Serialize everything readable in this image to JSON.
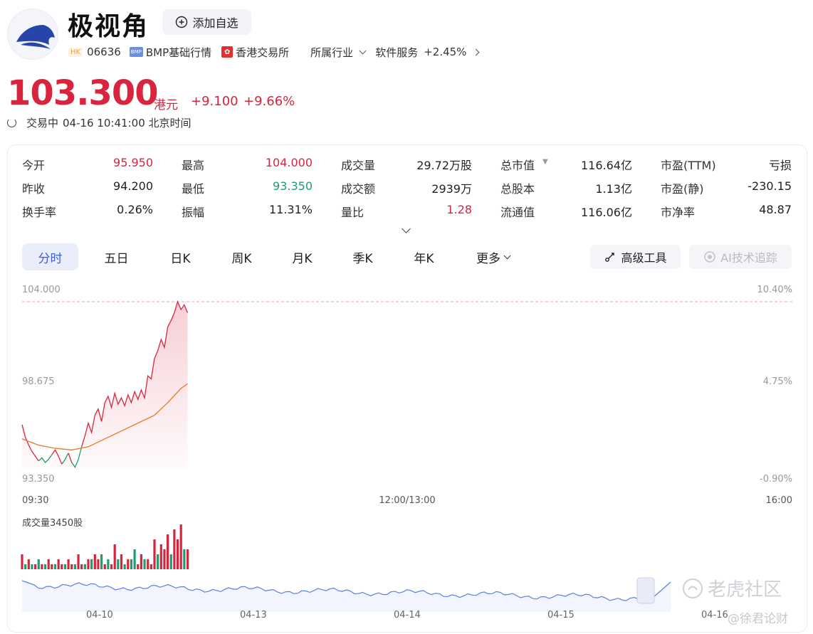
{
  "header": {
    "name": "极视角",
    "watch_label": "添加自选",
    "market_badge": "HK",
    "code": "06636",
    "bmp_badge": "BMP",
    "bmp_label": "BMP基础行情",
    "exchange": "香港交易所",
    "industry_label": "所属行业",
    "sector": "软件服务",
    "sector_change": "+2.45%"
  },
  "price": {
    "last": "103.300",
    "currency": "港元",
    "change": "+9.100",
    "change_pct": "+9.66%",
    "status": "交易中",
    "time": "04-16 10:41:00 北京时间"
  },
  "quote": [
    [
      {
        "label": "今开",
        "value": "95.950",
        "tone": "red"
      },
      {
        "label": "最高",
        "value": "104.000",
        "tone": "red"
      },
      {
        "label": "成交量",
        "value": "29.72万股",
        "tone": ""
      },
      {
        "label": "总市值",
        "value": "116.64亿",
        "tone": ""
      },
      {
        "label": "市盈(TTM)",
        "value": "亏损",
        "tone": ""
      }
    ],
    [
      {
        "label": "昨收",
        "value": "94.200",
        "tone": ""
      },
      {
        "label": "最低",
        "value": "93.350",
        "tone": "green"
      },
      {
        "label": "成交额",
        "value": "2939万",
        "tone": ""
      },
      {
        "label": "总股本",
        "value": "1.13亿",
        "tone": ""
      },
      {
        "label": "市盈(静)",
        "value": "-230.15",
        "tone": ""
      }
    ],
    [
      {
        "label": "换手率",
        "value": "0.26%",
        "tone": ""
      },
      {
        "label": "振幅",
        "value": "11.31%",
        "tone": ""
      },
      {
        "label": "量比",
        "value": "1.28",
        "tone": "red"
      },
      {
        "label": "流通值",
        "value": "116.06亿",
        "tone": ""
      },
      {
        "label": "市净率",
        "value": "48.87",
        "tone": ""
      }
    ]
  ],
  "tabs": [
    "分时",
    "五日",
    "日K",
    "周K",
    "月K",
    "季K",
    "年K",
    "更多"
  ],
  "tools": {
    "advanced": "高级工具",
    "ai": "AI技术追踪"
  },
  "chart_data": {
    "type": "line",
    "x_ticks": [
      "09:30",
      "12:00/13:00",
      "16:00"
    ],
    "y_ticks_left": [
      "104.000",
      "98.675",
      "93.350"
    ],
    "y_ticks_right": [
      "10.40%",
      "4.75%",
      "-0.90%"
    ],
    "volume_label": "成交量3450股",
    "overview_dates": [
      "04-10",
      "04-13",
      "04-14",
      "04-15",
      "04-16"
    ],
    "colors": {
      "price": "#d8253d",
      "avg": "#e8782a",
      "down": "#1f9c72",
      "overview": "#5b7fe0"
    },
    "price_points": [
      [
        0,
        96.2
      ],
      [
        1,
        95.4
      ],
      [
        2,
        94.9
      ],
      [
        3,
        94.5
      ],
      [
        4,
        94.2
      ],
      [
        5,
        93.9
      ],
      [
        6,
        94.1
      ],
      [
        7,
        93.8
      ],
      [
        8,
        94.0
      ],
      [
        9,
        94.3
      ],
      [
        10,
        94.6
      ],
      [
        11,
        94.2
      ],
      [
        12,
        93.7
      ],
      [
        13,
        94.0
      ],
      [
        14,
        94.4
      ],
      [
        15,
        93.8
      ],
      [
        16,
        93.5
      ],
      [
        17,
        94.0
      ],
      [
        18,
        94.8
      ],
      [
        19,
        95.5
      ],
      [
        20,
        96.3
      ],
      [
        21,
        95.7
      ],
      [
        22,
        96.8
      ],
      [
        23,
        97.2
      ],
      [
        24,
        96.4
      ],
      [
        25,
        97.6
      ],
      [
        26,
        98.0
      ],
      [
        27,
        97.3
      ],
      [
        28,
        98.2
      ],
      [
        29,
        97.5
      ],
      [
        30,
        97.9
      ],
      [
        31,
        97.4
      ],
      [
        32,
        98.1
      ],
      [
        33,
        97.6
      ],
      [
        34,
        98.3
      ],
      [
        35,
        97.8
      ],
      [
        36,
        98.4
      ],
      [
        37,
        97.9
      ],
      [
        38,
        99.3
      ],
      [
        39,
        99.1
      ],
      [
        40,
        100.4
      ],
      [
        41,
        100.9
      ],
      [
        42,
        101.6
      ],
      [
        43,
        101.1
      ],
      [
        44,
        102.4
      ],
      [
        45,
        102.8
      ],
      [
        46,
        103.3
      ],
      [
        47,
        104.0
      ],
      [
        48,
        103.5
      ],
      [
        49,
        103.8
      ],
      [
        50,
        103.3
      ]
    ],
    "avg_points": [
      [
        0,
        95.3
      ],
      [
        5,
        94.9
      ],
      [
        10,
        94.7
      ],
      [
        15,
        94.6
      ],
      [
        20,
        94.8
      ],
      [
        25,
        95.3
      ],
      [
        30,
        95.8
      ],
      [
        35,
        96.3
      ],
      [
        40,
        96.8
      ],
      [
        44,
        97.6
      ],
      [
        48,
        98.5
      ],
      [
        50,
        98.8
      ]
    ],
    "volume_bars": [
      3,
      1,
      2,
      1,
      1,
      2,
      1,
      1,
      2,
      1,
      1,
      2,
      1,
      1,
      2,
      1,
      1,
      3,
      1,
      1,
      2,
      2,
      3,
      2,
      3,
      1,
      2,
      1,
      5,
      2,
      3,
      1,
      2,
      2,
      4,
      1,
      3,
      2,
      2,
      1,
      6,
      3,
      5,
      4,
      7,
      3,
      8,
      6,
      9,
      4,
      4
    ],
    "volume_up": [
      true,
      false,
      true,
      false,
      true,
      false,
      true,
      false,
      true,
      true,
      false,
      true,
      true,
      false,
      true,
      true,
      false,
      true,
      true,
      false,
      true,
      false,
      true,
      true,
      false,
      true,
      false,
      true,
      true,
      false,
      true,
      false,
      true,
      false,
      false,
      true,
      true,
      false,
      true,
      true,
      true,
      false,
      true,
      true,
      true,
      false,
      true,
      true,
      true,
      false,
      true
    ]
  },
  "watermark": {
    "brand": "老虎社区",
    "author": "@徐君论财"
  }
}
